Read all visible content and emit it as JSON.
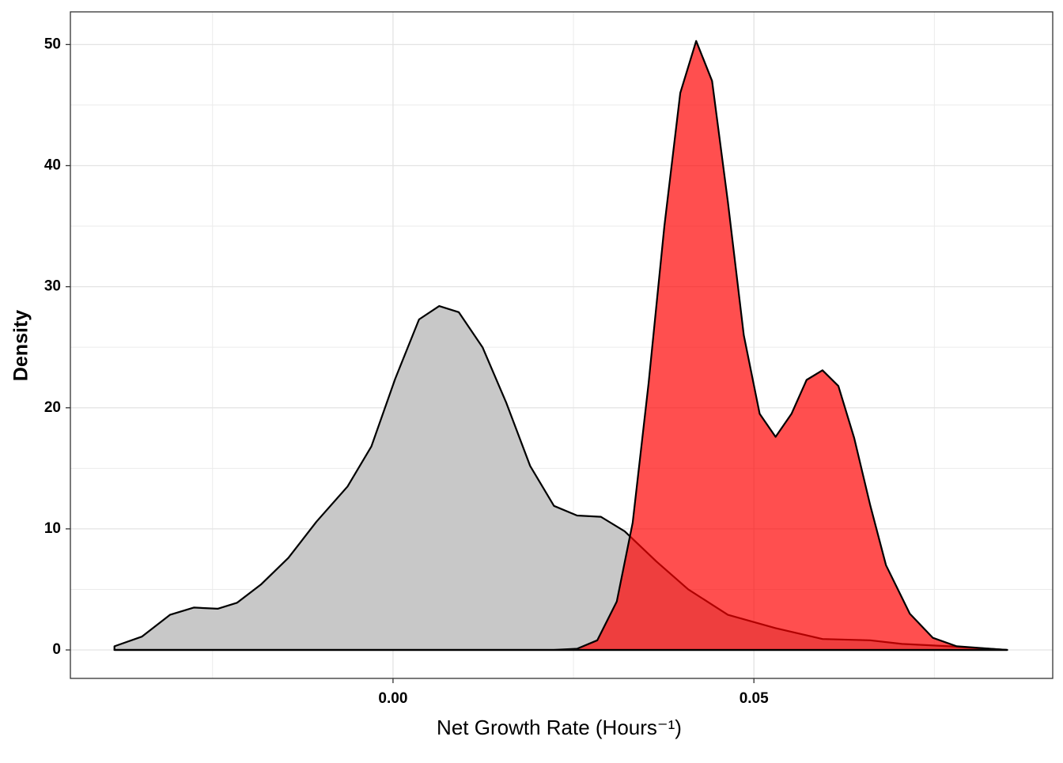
{
  "chart_data": {
    "type": "area",
    "xlabel": "Net Growth Rate (Hours⁻¹)",
    "ylabel": "Density",
    "xlim": [
      -0.0447,
      0.0914
    ],
    "ylim": [
      -2.35,
      52.7
    ],
    "xticks": [
      {
        "value": 0,
        "label": "0.00"
      },
      {
        "value": 0.05,
        "label": "0.05"
      }
    ],
    "xminorticks": [
      -0.025,
      0.025,
      0.075
    ],
    "yticks": [
      0,
      10,
      20,
      30,
      40,
      50
    ],
    "yminorticks": [
      5,
      15,
      25,
      35,
      45
    ],
    "grid": true,
    "series": [
      {
        "color": "#c8c8c8",
        "opacity": 1,
        "x": [
          -0.0386,
          -0.0348,
          -0.0309,
          -0.0276,
          -0.0243,
          -0.0216,
          -0.0183,
          -0.0145,
          -0.0106,
          -0.0063,
          -0.003,
          0.0003,
          0.0036,
          0.0064,
          0.0091,
          0.0124,
          0.0157,
          0.019,
          0.0223,
          0.0255,
          0.0288,
          0.0321,
          0.0365,
          0.0409,
          0.0464,
          0.053,
          0.0595,
          0.0661,
          0.0705,
          0.0771,
          0.0851
        ],
        "values": [
          0.3,
          1.1,
          2.9,
          3.5,
          3.4,
          3.9,
          5.4,
          7.6,
          10.6,
          13.5,
          16.8,
          22.4,
          27.3,
          28.4,
          27.9,
          25.0,
          20.4,
          15.2,
          11.9,
          11.1,
          11.0,
          9.8,
          7.3,
          5.0,
          2.9,
          1.8,
          0.9,
          0.8,
          0.5,
          0.3,
          0.0
        ]
      },
      {
        "color": "#ff0000",
        "opacity": 0.69,
        "x": [
          -0.0386,
          0.0223,
          0.0255,
          0.0283,
          0.031,
          0.0332,
          0.0354,
          0.0376,
          0.0398,
          0.042,
          0.0442,
          0.0464,
          0.0486,
          0.0508,
          0.053,
          0.0552,
          0.0573,
          0.0595,
          0.0617,
          0.0639,
          0.0661,
          0.0683,
          0.0716,
          0.0748,
          0.0781,
          0.0851
        ],
        "values": [
          0,
          0,
          0.1,
          0.8,
          4.0,
          10.5,
          22,
          35,
          46,
          50.3,
          47,
          37,
          26,
          19.5,
          17.6,
          19.5,
          22.3,
          23.1,
          21.8,
          17.5,
          12,
          7,
          3,
          1.0,
          0.3,
          0.0
        ]
      }
    ]
  }
}
